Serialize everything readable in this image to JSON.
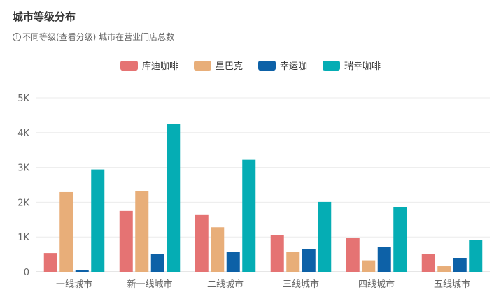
{
  "header": {
    "title": "城市等级分布",
    "subtitle": "不同等级(查看分级) 城市在营业门店总数",
    "info_icon": "info-icon"
  },
  "chart_data": {
    "type": "bar",
    "title": "城市等级分布",
    "subtitle": "不同等级(查看分级) 城市在营业门店总数",
    "categories": [
      "一线城市",
      "新一线城市",
      "二线城市",
      "三线城市",
      "四线城市",
      "五线城市"
    ],
    "series": [
      {
        "name": "库迪咖啡",
        "color": "#e57373",
        "values": [
          540,
          1750,
          1630,
          1050,
          970,
          520
        ]
      },
      {
        "name": "星巴克",
        "color": "#e8ae79",
        "values": [
          2290,
          2310,
          1280,
          580,
          330,
          160
        ]
      },
      {
        "name": "幸运咖",
        "color": "#0d61a7",
        "values": [
          40,
          510,
          580,
          660,
          720,
          400
        ]
      },
      {
        "name": "瑞幸咖啡",
        "color": "#05adb4",
        "values": [
          2940,
          4250,
          3220,
          2010,
          1850,
          910
        ]
      }
    ],
    "ylim": [
      0,
      5000
    ],
    "yticks": [
      {
        "value": 0,
        "label": "0"
      },
      {
        "value": 1000,
        "label": "1K"
      },
      {
        "value": 2000,
        "label": "2K"
      },
      {
        "value": 3000,
        "label": "3K"
      },
      {
        "value": 4000,
        "label": "4K"
      },
      {
        "value": 5000,
        "label": "5K"
      }
    ],
    "xlabel": "",
    "ylabel": "",
    "grid": true,
    "legend_position": "top-center"
  }
}
